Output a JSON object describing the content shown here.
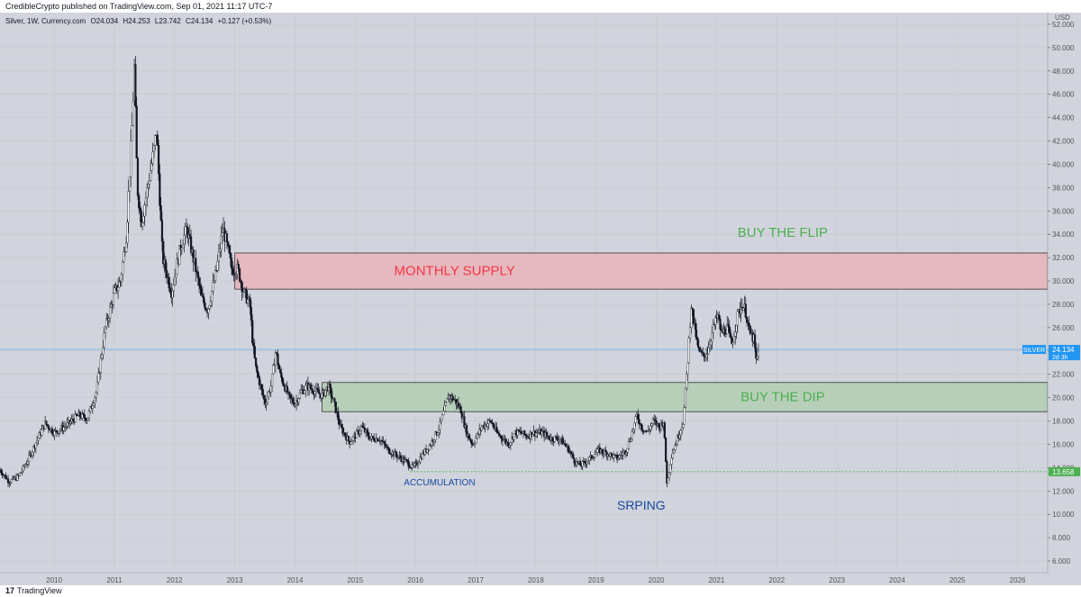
{
  "header": {
    "published_text": "CredibleCrypto published on TradingView.com, Sep 01, 2021 11:17 UTC-7"
  },
  "legend": {
    "symbol": "Silver, 1W, Currency.com",
    "o_label": "O",
    "o_value": "24.034",
    "h_label": "H",
    "h_value": "24.253",
    "l_label": "L",
    "l_value": "23.742",
    "c_label": "C",
    "c_value": "24.134",
    "change": "+0.127 (+0.53%)"
  },
  "footer": {
    "logo_glyph": "17",
    "brand": "TradingView"
  },
  "colors": {
    "background": "#d1d4dc",
    "candle": "#131722",
    "supply_zone": "#e6b8bf",
    "demand_zone": "#b7cfb9",
    "supply_text": "#f23645",
    "demand_text": "#4caf50",
    "annotation_blue": "#1848a0",
    "price_line": "#2196f3",
    "support_line": "#4caf50"
  },
  "chart_data": {
    "type": "candlestick",
    "instrument": "SILVER",
    "currency_label": "USD",
    "ylim": [
      5,
      53
    ],
    "xlim": [
      2009.1,
      2026.5
    ],
    "x_ticks": [
      "2010",
      "2011",
      "2012",
      "2013",
      "2014",
      "2015",
      "2016",
      "2017",
      "2018",
      "2019",
      "2020",
      "2021",
      "2022",
      "2023",
      "2024",
      "2025",
      "2026"
    ],
    "y_ticks": [
      "6.000",
      "8.000",
      "10.000",
      "12.000",
      "14.000",
      "16.000",
      "18.000",
      "20.000",
      "22.000",
      "24.000",
      "26.000",
      "28.000",
      "30.000",
      "32.000",
      "34.000",
      "36.000",
      "38.000",
      "40.000",
      "42.000",
      "44.000",
      "46.000",
      "48.000",
      "50.000",
      "52.000"
    ],
    "price_path": [
      [
        2009.1,
        13.8
      ],
      [
        2009.25,
        12.8
      ],
      [
        2009.4,
        13.2
      ],
      [
        2009.55,
        14.5
      ],
      [
        2009.7,
        16.2
      ],
      [
        2009.85,
        17.8
      ],
      [
        2010.0,
        17.0
      ],
      [
        2010.2,
        17.6
      ],
      [
        2010.4,
        18.5
      ],
      [
        2010.55,
        18.2
      ],
      [
        2010.7,
        20.5
      ],
      [
        2010.85,
        26.0
      ],
      [
        2011.0,
        29.0
      ],
      [
        2011.1,
        30.0
      ],
      [
        2011.2,
        34.0
      ],
      [
        2011.3,
        44.0
      ],
      [
        2011.33,
        48.5
      ],
      [
        2011.38,
        38.0
      ],
      [
        2011.45,
        35.0
      ],
      [
        2011.55,
        38.0
      ],
      [
        2011.65,
        41.0
      ],
      [
        2011.7,
        43.0
      ],
      [
        2011.8,
        32.0
      ],
      [
        2011.95,
        29.0
      ],
      [
        2012.1,
        33.0
      ],
      [
        2012.2,
        34.5
      ],
      [
        2012.35,
        31.0
      ],
      [
        2012.45,
        28.5
      ],
      [
        2012.55,
        27.5
      ],
      [
        2012.7,
        31.0
      ],
      [
        2012.8,
        34.5
      ],
      [
        2012.85,
        33.5
      ],
      [
        2012.95,
        31.0
      ],
      [
        2013.05,
        31.0
      ],
      [
        2013.15,
        29.0
      ],
      [
        2013.25,
        28.0
      ],
      [
        2013.3,
        24.5
      ],
      [
        2013.35,
        22.5
      ],
      [
        2013.5,
        19.5
      ],
      [
        2013.6,
        21.0
      ],
      [
        2013.68,
        24.0
      ],
      [
        2013.75,
        22.0
      ],
      [
        2013.9,
        20.0
      ],
      [
        2014.0,
        19.5
      ],
      [
        2014.1,
        20.5
      ],
      [
        2014.2,
        21.0
      ],
      [
        2014.35,
        20.5
      ],
      [
        2014.45,
        20.2
      ],
      [
        2014.55,
        21.0
      ],
      [
        2014.65,
        19.5
      ],
      [
        2014.75,
        17.5
      ],
      [
        2014.9,
        16.2
      ],
      [
        2015.05,
        17.0
      ],
      [
        2015.1,
        17.5
      ],
      [
        2015.25,
        16.5
      ],
      [
        2015.4,
        16.5
      ],
      [
        2015.55,
        15.5
      ],
      [
        2015.7,
        15.0
      ],
      [
        2015.85,
        14.5
      ],
      [
        2015.95,
        14.0
      ],
      [
        2016.0,
        14.2
      ],
      [
        2016.1,
        15.0
      ],
      [
        2016.25,
        16.0
      ],
      [
        2016.4,
        17.5
      ],
      [
        2016.55,
        20.2
      ],
      [
        2016.65,
        19.8
      ],
      [
        2016.75,
        19.0
      ],
      [
        2016.85,
        17.0
      ],
      [
        2016.95,
        16.0
      ],
      [
        2017.1,
        17.5
      ],
      [
        2017.25,
        18.0
      ],
      [
        2017.35,
        17.0
      ],
      [
        2017.45,
        16.5
      ],
      [
        2017.55,
        16.0
      ],
      [
        2017.65,
        17.0
      ],
      [
        2017.75,
        17.0
      ],
      [
        2017.85,
        16.7
      ],
      [
        2017.95,
        17.0
      ],
      [
        2018.1,
        17.0
      ],
      [
        2018.25,
        16.5
      ],
      [
        2018.4,
        16.5
      ],
      [
        2018.55,
        15.5
      ],
      [
        2018.65,
        14.5
      ],
      [
        2018.75,
        14.2
      ],
      [
        2018.9,
        14.8
      ],
      [
        2019.05,
        15.5
      ],
      [
        2019.2,
        15.2
      ],
      [
        2019.35,
        14.8
      ],
      [
        2019.5,
        15.5
      ],
      [
        2019.6,
        17.0
      ],
      [
        2019.68,
        18.5
      ],
      [
        2019.75,
        17.5
      ],
      [
        2019.85,
        17.0
      ],
      [
        2019.95,
        18.0
      ],
      [
        2020.05,
        17.5
      ],
      [
        2020.12,
        18.0
      ],
      [
        2020.18,
        12.5
      ],
      [
        2020.25,
        15.0
      ],
      [
        2020.35,
        16.5
      ],
      [
        2020.45,
        18.0
      ],
      [
        2020.52,
        23.0
      ],
      [
        2020.58,
        28.0
      ],
      [
        2020.62,
        26.5
      ],
      [
        2020.7,
        24.0
      ],
      [
        2020.78,
        23.5
      ],
      [
        2020.85,
        24.0
      ],
      [
        2020.95,
        26.0
      ],
      [
        2021.02,
        27.0
      ],
      [
        2021.08,
        25.5
      ],
      [
        2021.18,
        26.0
      ],
      [
        2021.25,
        24.5
      ],
      [
        2021.35,
        27.0
      ],
      [
        2021.42,
        28.0
      ],
      [
        2021.48,
        27.5
      ],
      [
        2021.55,
        25.5
      ],
      [
        2021.62,
        25.0
      ],
      [
        2021.66,
        23.0
      ],
      [
        2021.7,
        24.0
      ]
    ],
    "current_price": 24.134,
    "current_price_label": "24.134",
    "current_price_tag": "SILVER",
    "countdown_label": "2d 3h",
    "support_level": 13.658,
    "support_label": "13.658",
    "zones": [
      {
        "name": "MONTHLY SUPPLY",
        "low": 29.3,
        "high": 32.4,
        "start": 2013.0
      },
      {
        "name": "BUY THE DIP",
        "low": 18.8,
        "high": 21.3,
        "start": 2014.45
      }
    ],
    "annotations": [
      {
        "text": "BUY THE FLIP",
        "x": 2022.1,
        "y": 33.8,
        "color": "demand_text",
        "size": 15
      },
      {
        "text": "MONTHLY SUPPLY",
        "x": 2016.65,
        "y": 30.5,
        "color": "supply_text",
        "size": 15
      },
      {
        "text": "BUY THE DIP",
        "x": 2022.1,
        "y": 19.7,
        "color": "demand_text",
        "size": 15
      },
      {
        "text": "ACCUMULATION",
        "x": 2016.4,
        "y": 12.5,
        "color": "annotation_blue",
        "size": 10
      },
      {
        "text": "SRPING",
        "x": 2019.75,
        "y": 10.4,
        "color": "annotation_blue",
        "size": 14
      }
    ]
  }
}
